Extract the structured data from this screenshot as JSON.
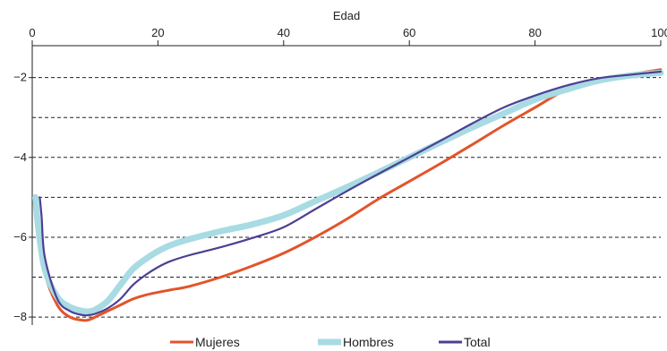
{
  "chart_data": {
    "type": "line",
    "title": "",
    "xlabel": "Edad",
    "ylabel": "",
    "xlim": [
      0,
      100
    ],
    "ylim": [
      -8.2,
      -1.2
    ],
    "x_ticks": [
      0,
      20,
      40,
      60,
      80,
      100
    ],
    "y_ticks": [
      -2,
      -4,
      -6,
      -8
    ],
    "x_tick_labels": [
      "0",
      "20",
      "40",
      "60",
      "80",
      "100"
    ],
    "y_tick_labels": [
      "−2",
      "−4",
      "−6",
      "−8"
    ],
    "gridlines_y": [
      -2,
      -3,
      -4,
      -5,
      -6,
      -7,
      -8
    ],
    "grid": "horizontal dashed",
    "x_axis_position": "top",
    "legend_position": "bottom-center",
    "series": [
      {
        "name": "Mujeres",
        "color": "#e2542a",
        "width": 3,
        "x": [
          0.5,
          1,
          2,
          4,
          6,
          8,
          9,
          10,
          12,
          14,
          16,
          18,
          20,
          22,
          25,
          30,
          35,
          40,
          45,
          50,
          55,
          60,
          65,
          70,
          75,
          80,
          85,
          90,
          95,
          100
        ],
        "y": [
          -5.0,
          -5.8,
          -6.9,
          -7.7,
          -8.0,
          -8.08,
          -8.07,
          -8.0,
          -7.85,
          -7.7,
          -7.55,
          -7.45,
          -7.38,
          -7.32,
          -7.23,
          -7.0,
          -6.72,
          -6.4,
          -6.0,
          -5.55,
          -5.05,
          -4.6,
          -4.15,
          -3.68,
          -3.2,
          -2.75,
          -2.3,
          -2.05,
          -1.92,
          -1.8
        ]
      },
      {
        "name": "Hombres",
        "color": "#a8dbe3",
        "width": 7,
        "x": [
          0.5,
          1,
          2,
          4,
          6,
          8,
          9,
          10,
          12,
          14,
          16,
          18,
          20,
          22,
          25,
          30,
          35,
          40,
          45,
          50,
          55,
          60,
          65,
          70,
          75,
          80,
          85,
          90,
          95,
          100
        ],
        "y": [
          -5.0,
          -5.8,
          -6.8,
          -7.5,
          -7.75,
          -7.85,
          -7.86,
          -7.82,
          -7.6,
          -7.2,
          -6.8,
          -6.55,
          -6.35,
          -6.2,
          -6.05,
          -5.85,
          -5.68,
          -5.45,
          -5.1,
          -4.75,
          -4.38,
          -4.0,
          -3.62,
          -3.25,
          -2.9,
          -2.55,
          -2.3,
          -2.08,
          -1.95,
          -1.88
        ]
      },
      {
        "name": "Total",
        "color": "#4c3f93",
        "width": 2.2,
        "x": [
          1.2,
          1.5,
          2,
          4,
          6,
          8,
          9,
          10,
          12,
          14,
          16,
          18,
          20,
          22,
          25,
          30,
          35,
          40,
          45,
          50,
          55,
          60,
          65,
          70,
          75,
          80,
          85,
          90,
          95,
          100
        ],
        "y": [
          -5.0,
          -5.5,
          -6.5,
          -7.55,
          -7.85,
          -7.95,
          -7.95,
          -7.92,
          -7.78,
          -7.55,
          -7.2,
          -6.95,
          -6.75,
          -6.6,
          -6.45,
          -6.25,
          -6.02,
          -5.75,
          -5.3,
          -4.85,
          -4.42,
          -4.0,
          -3.58,
          -3.15,
          -2.75,
          -2.45,
          -2.2,
          -2.02,
          -1.93,
          -1.85
        ]
      }
    ]
  },
  "colors": {
    "grid": "#222222",
    "axis": "#222222"
  }
}
